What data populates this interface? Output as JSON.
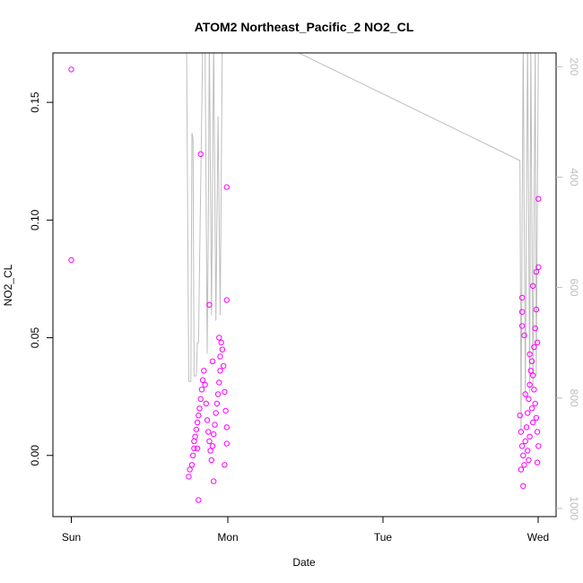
{
  "chart_data": {
    "type": "scatter",
    "title": "ATOM2 Northeast_Pacific_2 NO2_CL",
    "xlabel": "Date",
    "ylabel": "NO2_CL",
    "x_ticks": [
      "Sun",
      "Mon",
      "Tue",
      "Wed"
    ],
    "y_ticks": [
      "0.00",
      "0.05",
      "0.10",
      "0.15"
    ],
    "y_right_ticks": [
      "200",
      "400",
      "600",
      "800",
      "1000"
    ],
    "ylim": [
      -0.026,
      0.171
    ],
    "y_right_lim": [
      1015,
      175
    ],
    "y_right_reversed": true,
    "grid": false,
    "colors": {
      "points": "#ff00ff",
      "pressure_line": "#bebebe",
      "axis": "#000000"
    },
    "series": [
      {
        "role": "NO2_CL points",
        "kind": "scatter",
        "points": [
          [
            "Sun 00:00",
            0.164
          ],
          [
            "Sun 00:00",
            0.083
          ],
          [
            "Sun 19:50",
            0.128
          ],
          [
            "Sun 21:10",
            0.064
          ],
          [
            "Sun 23:50",
            0.114
          ],
          [
            "Sun 23:50",
            0.066
          ],
          [
            "Sun 18:00",
            -0.009
          ],
          [
            "Sun 18:10",
            -0.006
          ],
          [
            "Sun 18:30",
            -0.004
          ],
          [
            "Sun 18:40",
            0.0
          ],
          [
            "Sun 18:50",
            0.003
          ],
          [
            "Sun 18:50",
            0.006
          ],
          [
            "Sun 19:00",
            0.008
          ],
          [
            "Sun 19:10",
            0.011
          ],
          [
            "Sun 19:20",
            0.014
          ],
          [
            "Sun 19:30",
            0.017
          ],
          [
            "Sun 19:40",
            0.02
          ],
          [
            "Sun 19:50",
            0.024
          ],
          [
            "Sun 20:00",
            0.028
          ],
          [
            "Sun 20:10",
            0.032
          ],
          [
            "Sun 20:20",
            0.036
          ],
          [
            "Sun 20:30",
            0.03
          ],
          [
            "Sun 20:40",
            0.022
          ],
          [
            "Sun 20:50",
            0.015
          ],
          [
            "Sun 21:00",
            0.01
          ],
          [
            "Sun 21:10",
            0.006
          ],
          [
            "Sun 21:20",
            0.002
          ],
          [
            "Sun 21:30",
            -0.002
          ],
          [
            "Sun 21:40",
            0.004
          ],
          [
            "Sun 21:50",
            0.009
          ],
          [
            "Sun 22:00",
            0.013
          ],
          [
            "Sun 22:10",
            0.018
          ],
          [
            "Sun 22:20",
            0.022
          ],
          [
            "Sun 22:30",
            0.026
          ],
          [
            "Sun 22:40",
            0.031
          ],
          [
            "Sun 22:50",
            0.036
          ],
          [
            "Sun 22:50",
            0.042
          ],
          [
            "Sun 23:00",
            0.048
          ],
          [
            "Sun 23:10",
            0.045
          ],
          [
            "Sun 23:20",
            0.038
          ],
          [
            "Sun 23:30",
            0.027
          ],
          [
            "Sun 23:40",
            0.019
          ],
          [
            "Sun 23:50",
            0.012
          ],
          [
            "Sun 23:50",
            0.005
          ],
          [
            "Sun 23:30",
            -0.004
          ],
          [
            "Sun 19:30",
            -0.019
          ],
          [
            "Sun 21:50",
            -0.011
          ],
          [
            "Sun 22:40",
            0.05
          ],
          [
            "Sun 21:40",
            0.04
          ],
          [
            "Sun 19:20",
            0.003
          ],
          [
            "Tue 21:20",
            0.067
          ],
          [
            "Tue 21:20",
            0.061
          ],
          [
            "Tue 21:20",
            0.055
          ],
          [
            "Tue 21:40",
            0.051
          ],
          [
            "Tue 22:30",
            0.043
          ],
          [
            "Tue 23:30",
            0.062
          ],
          [
            "Tue 23:00",
            0.072
          ],
          [
            "Tue 23:30",
            0.078
          ],
          [
            "Tue 23:50",
            0.08
          ],
          [
            "Tue 23:50",
            0.109
          ],
          [
            "Tue 21:10",
            -0.006
          ],
          [
            "Tue 21:30",
            -0.013
          ],
          [
            "Tue 23:40",
            -0.003
          ],
          [
            "Tue 21:00",
            0.017
          ],
          [
            "Tue 21:10",
            0.01
          ],
          [
            "Tue 21:20",
            0.004
          ],
          [
            "Tue 21:30",
            0.0
          ],
          [
            "Tue 21:40",
            -0.004
          ],
          [
            "Tue 21:50",
            0.006
          ],
          [
            "Tue 22:00",
            0.012
          ],
          [
            "Tue 22:10",
            0.018
          ],
          [
            "Tue 22:20",
            0.024
          ],
          [
            "Tue 22:30",
            0.03
          ],
          [
            "Tue 22:40",
            0.036
          ],
          [
            "Tue 22:50",
            0.04
          ],
          [
            "Tue 23:00",
            0.034
          ],
          [
            "Tue 23:10",
            0.028
          ],
          [
            "Tue 23:20",
            0.022
          ],
          [
            "Tue 23:30",
            0.016
          ],
          [
            "Tue 23:40",
            0.01
          ],
          [
            "Tue 23:50",
            0.004
          ],
          [
            "Tue 21:50",
            0.026
          ],
          [
            "Tue 22:10",
            0.002
          ],
          [
            "Tue 22:30",
            0.008
          ],
          [
            "Tue 22:50",
            0.02
          ],
          [
            "Tue 23:10",
            0.046
          ],
          [
            "Tue 23:20",
            0.054
          ],
          [
            "Tue 23:40",
            0.048
          ],
          [
            "Tue 23:00",
            0.014
          ],
          [
            "Tue 22:20",
            -0.002
          ]
        ]
      },
      {
        "role": "pressure trace (right axis)",
        "kind": "line",
        "points": [
          [
            "Sun 17:40",
            150
          ],
          [
            "Sun 18:00",
            770
          ],
          [
            "Sun 18:20",
            770
          ],
          [
            "Sun 18:30",
            320
          ],
          [
            "Sun 18:40",
            330
          ],
          [
            "Sun 18:50",
            760
          ],
          [
            "Sun 19:10",
            760
          ],
          [
            "Sun 19:20",
            700
          ],
          [
            "Sun 19:30",
            700
          ],
          [
            "Sun 19:50",
            420
          ],
          [
            "Sun 20:10",
            150
          ],
          [
            "Sun 20:30",
            150
          ],
          [
            "Sun 20:50",
            720
          ],
          [
            "Sun 21:00",
            500
          ],
          [
            "Sun 21:10",
            150
          ],
          [
            "Sun 21:30",
            650
          ],
          [
            "Sun 21:50",
            150
          ],
          [
            "Sun 22:10",
            660
          ],
          [
            "Sun 22:30",
            290
          ],
          [
            "Sun 22:50",
            650
          ],
          [
            "Sun 23:10",
            150
          ],
          [
            "Sun 23:50",
            150
          ],
          [
            "Mon 10:00",
            170
          ],
          [
            "Tue 21:00",
            370
          ],
          [
            "Tue 21:10",
            860
          ],
          [
            "Tue 21:30",
            150
          ],
          [
            "Tue 21:50",
            800
          ],
          [
            "Tue 22:10",
            150
          ],
          [
            "Tue 22:30",
            790
          ],
          [
            "Tue 22:40",
            150
          ],
          [
            "Tue 23:00",
            780
          ],
          [
            "Tue 23:20",
            150
          ],
          [
            "Tue 23:30",
            760
          ],
          [
            "Tue 23:50",
            150
          ]
        ]
      }
    ]
  }
}
